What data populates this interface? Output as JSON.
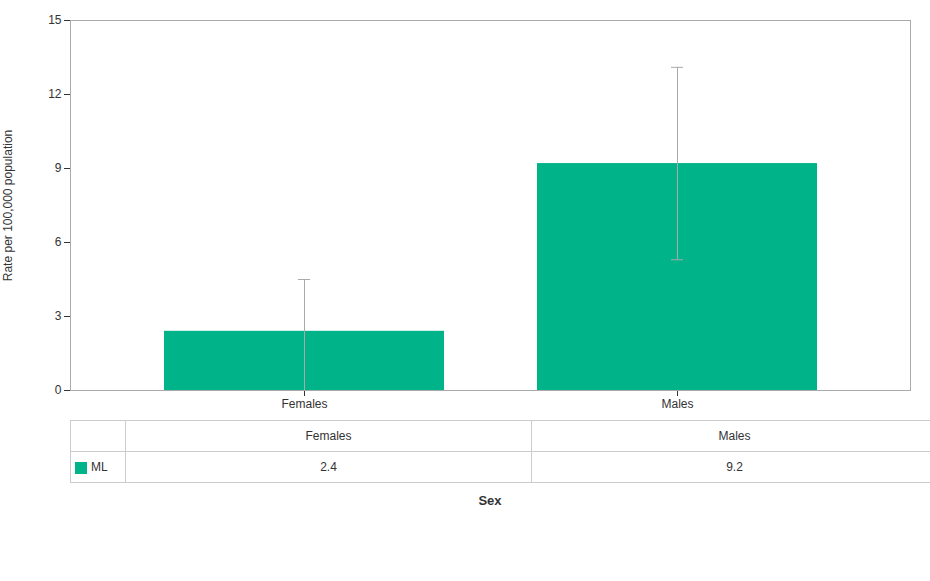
{
  "chart_data": {
    "type": "bar",
    "categories": [
      "Females",
      "Males"
    ],
    "series": [
      {
        "name": "ML",
        "color": "#00b388",
        "values": [
          2.4,
          9.2
        ]
      }
    ],
    "error_upper": [
      2.1,
      3.9
    ],
    "error_lower": [
      2.4,
      3.9
    ],
    "ylabel": "Rate per 100,000 population",
    "xlabel": "Sex",
    "ylim": [
      0,
      15
    ],
    "yticks": [
      0,
      3,
      6,
      9,
      12,
      15
    ],
    "data_labels": true
  }
}
